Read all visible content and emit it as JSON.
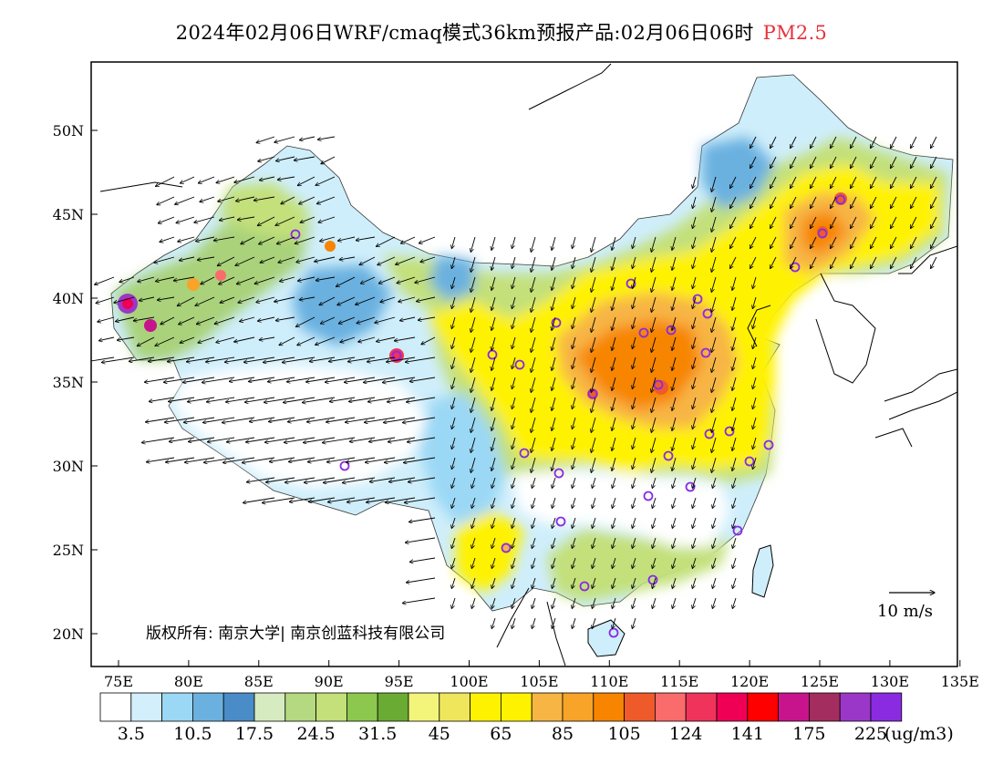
{
  "header": {
    "title": "2024年02月06日WRF/cmaq模式36km预报产品:02月06日06时",
    "variable": "PM2.5",
    "variable_color": "#e8323c"
  },
  "map": {
    "lon_labels": [
      "75E",
      "80E",
      "85E",
      "90E",
      "95E",
      "100E",
      "105E",
      "110E",
      "115E",
      "120E",
      "125E",
      "130E",
      "135E"
    ],
    "lat_labels": [
      "50N",
      "45N",
      "40N",
      "35N",
      "30N",
      "25N",
      "20N"
    ],
    "copyright": "版权所有: 南京大学| 南京创蓝科技有限公司",
    "wind_scale_label": "10 m/s"
  },
  "colorbar": {
    "colors": [
      "#ffffff",
      "#d3effb",
      "#9bd8f5",
      "#6bb1e0",
      "#4a8cc7",
      "#d7ebc1",
      "#b5d980",
      "#c3e07a",
      "#8cc84e",
      "#6aab33",
      "#f2f57a",
      "#f0e65c",
      "#fff200",
      "#fff200",
      "#f7b544",
      "#f7a428",
      "#f78500",
      "#ef5a2a",
      "#fa6b6b",
      "#f0335a",
      "#ef0055",
      "#ff0000",
      "#c8148c",
      "#a32d5f",
      "#9b37c8",
      "#8a2be2"
    ],
    "labels": [
      "3.5",
      "10.5",
      "17.5",
      "24.5",
      "31.5",
      "45",
      "65",
      "85",
      "105",
      "124",
      "141",
      "175",
      "225"
    ],
    "unit": "(ug/m3)"
  }
}
